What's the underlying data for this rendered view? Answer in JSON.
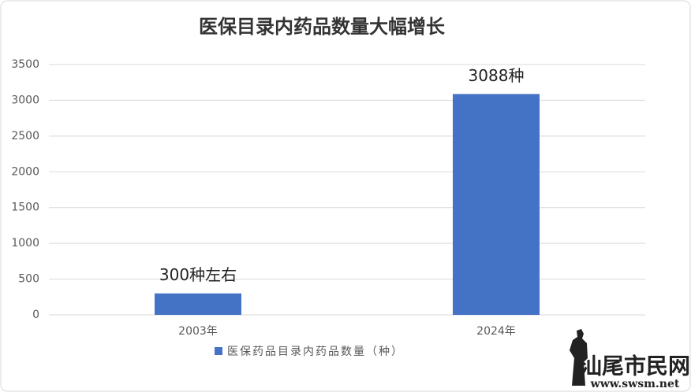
{
  "chart_data": {
    "type": "bar",
    "title": "医保目录内药品数量大幅增长",
    "categories": [
      "2003年",
      "2024年"
    ],
    "series": [
      {
        "name": "医保药品目录内药品数量（种）",
        "color": "#4472c4",
        "values": [
          300,
          3088
        ],
        "value_labels": [
          "300种左右",
          "3088种"
        ]
      }
    ],
    "ylim": [
      0,
      3500
    ],
    "yticks": [
      0,
      500,
      1000,
      1500,
      2000,
      2500,
      3000,
      3500
    ],
    "grid": true,
    "legend": "bottom"
  },
  "watermark": {
    "name": "汕尾市民网",
    "url": "www.swsm.net"
  }
}
